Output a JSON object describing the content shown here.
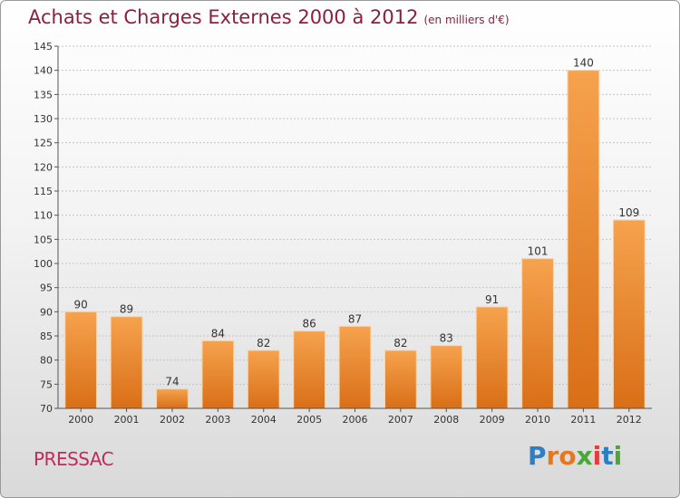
{
  "header": {
    "title": "Achats et Charges Externes 2000 à 2012",
    "subtitle": "(en milliers d'€)"
  },
  "footer": {
    "town": "PRESSAC",
    "logo": [
      "P",
      "r",
      "o",
      "x",
      "i",
      "t",
      "i"
    ]
  },
  "colors": {
    "title": "#8a1f3f",
    "town": "#c12a5c",
    "bar_light": "#f6a24e",
    "bar_dark": "#d96f17",
    "logo": [
      "#2d7fc1",
      "#e8781e",
      "#e8781e",
      "#4aa83b",
      "#e23c3c",
      "#2d7fc1",
      "#4aa83b"
    ]
  },
  "chart_data": {
    "type": "bar",
    "title": "Achats et Charges Externes 2000 à 2012",
    "subtitle": "(en milliers d'€)",
    "xlabel": "",
    "ylabel": "",
    "categories": [
      "2000",
      "2001",
      "2002",
      "2003",
      "2004",
      "2005",
      "2006",
      "2007",
      "2008",
      "2009",
      "2010",
      "2011",
      "2012"
    ],
    "values": [
      90,
      89,
      74,
      84,
      82,
      86,
      87,
      82,
      83,
      91,
      101,
      140,
      109
    ],
    "ylim": [
      70,
      145
    ],
    "yticks": [
      70,
      75,
      80,
      85,
      90,
      95,
      100,
      105,
      110,
      115,
      120,
      125,
      130,
      135,
      140,
      145
    ],
    "grid": true,
    "legend": "none"
  }
}
